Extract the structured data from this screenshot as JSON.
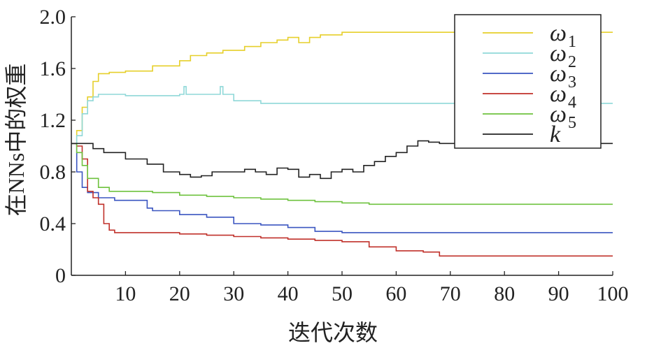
{
  "chart_data": {
    "type": "line",
    "title": "",
    "xlabel": "迭代次数",
    "ylabel": "在NNs中的权重",
    "xlim": [
      0,
      100
    ],
    "ylim": [
      0,
      2.0
    ],
    "xticks": [
      10,
      20,
      30,
      40,
      50,
      60,
      70,
      80,
      90,
      100
    ],
    "yticks": [
      0,
      0.4,
      0.8,
      1.2,
      1.6,
      2.0
    ],
    "ytick_labels": [
      "0",
      "0.4",
      "0.8",
      "1.2",
      "1.6",
      "2.0"
    ],
    "grid": false,
    "legend_position": "top-right",
    "series": [
      {
        "name": "ω",
        "subscript": "1",
        "color": "#e6cf2a",
        "points": [
          [
            0,
            1.02
          ],
          [
            1,
            1.12
          ],
          [
            2,
            1.3
          ],
          [
            3,
            1.38
          ],
          [
            4,
            1.5
          ],
          [
            5,
            1.56
          ],
          [
            7,
            1.57
          ],
          [
            10,
            1.58
          ],
          [
            15,
            1.62
          ],
          [
            20,
            1.66
          ],
          [
            22,
            1.7
          ],
          [
            25,
            1.72
          ],
          [
            28,
            1.74
          ],
          [
            32,
            1.77
          ],
          [
            35,
            1.8
          ],
          [
            38,
            1.82
          ],
          [
            40,
            1.84
          ],
          [
            42,
            1.8
          ],
          [
            44,
            1.84
          ],
          [
            46,
            1.86
          ],
          [
            50,
            1.88
          ],
          [
            55,
            1.88
          ],
          [
            60,
            1.88
          ],
          [
            70,
            1.88
          ],
          [
            80,
            1.88
          ],
          [
            90,
            1.88
          ],
          [
            100,
            1.88
          ]
        ]
      },
      {
        "name": "ω",
        "subscript": "2",
        "color": "#8fd8d8",
        "points": [
          [
            0,
            1.02
          ],
          [
            1,
            1.08
          ],
          [
            2,
            1.25
          ],
          [
            3,
            1.35
          ],
          [
            4,
            1.38
          ],
          [
            5,
            1.4
          ],
          [
            10,
            1.39
          ],
          [
            15,
            1.39
          ],
          [
            20,
            1.4
          ],
          [
            20.8,
            1.46
          ],
          [
            21.2,
            1.4
          ],
          [
            25,
            1.4
          ],
          [
            27.5,
            1.46
          ],
          [
            28,
            1.4
          ],
          [
            30,
            1.35
          ],
          [
            35,
            1.33
          ],
          [
            40,
            1.33
          ],
          [
            50,
            1.33
          ],
          [
            60,
            1.33
          ],
          [
            70,
            1.33
          ],
          [
            80,
            1.33
          ],
          [
            90,
            1.33
          ],
          [
            100,
            1.33
          ]
        ]
      },
      {
        "name": "ω",
        "subscript": "3",
        "color": "#3a55c0",
        "points": [
          [
            0,
            1.02
          ],
          [
            1,
            0.8
          ],
          [
            2,
            0.68
          ],
          [
            3,
            0.64
          ],
          [
            5,
            0.6
          ],
          [
            8,
            0.58
          ],
          [
            10,
            0.58
          ],
          [
            13,
            0.58
          ],
          [
            14,
            0.52
          ],
          [
            15,
            0.5
          ],
          [
            20,
            0.47
          ],
          [
            25,
            0.45
          ],
          [
            30,
            0.4
          ],
          [
            35,
            0.39
          ],
          [
            40,
            0.37
          ],
          [
            45,
            0.34
          ],
          [
            50,
            0.33
          ],
          [
            60,
            0.33
          ],
          [
            70,
            0.33
          ],
          [
            80,
            0.33
          ],
          [
            90,
            0.33
          ],
          [
            100,
            0.33
          ]
        ]
      },
      {
        "name": "ω",
        "subscript": "4",
        "color": "#c0302a",
        "points": [
          [
            0,
            1.02
          ],
          [
            1,
            1.0
          ],
          [
            2,
            0.9
          ],
          [
            3,
            0.65
          ],
          [
            4,
            0.6
          ],
          [
            5,
            0.55
          ],
          [
            6,
            0.4
          ],
          [
            7,
            0.35
          ],
          [
            8,
            0.33
          ],
          [
            15,
            0.33
          ],
          [
            20,
            0.32
          ],
          [
            25,
            0.31
          ],
          [
            30,
            0.3
          ],
          [
            35,
            0.29
          ],
          [
            40,
            0.28
          ],
          [
            45,
            0.27
          ],
          [
            50,
            0.26
          ],
          [
            55,
            0.22
          ],
          [
            60,
            0.19
          ],
          [
            65,
            0.18
          ],
          [
            68,
            0.15
          ],
          [
            70,
            0.15
          ],
          [
            80,
            0.15
          ],
          [
            90,
            0.15
          ],
          [
            100,
            0.15
          ]
        ]
      },
      {
        "name": "ω",
        "subscript": "5",
        "color": "#6ec23e",
        "points": [
          [
            0,
            1.02
          ],
          [
            1,
            0.95
          ],
          [
            2,
            0.85
          ],
          [
            3,
            0.75
          ],
          [
            5,
            0.68
          ],
          [
            7,
            0.65
          ],
          [
            10,
            0.65
          ],
          [
            15,
            0.64
          ],
          [
            20,
            0.62
          ],
          [
            25,
            0.61
          ],
          [
            30,
            0.6
          ],
          [
            35,
            0.59
          ],
          [
            40,
            0.58
          ],
          [
            45,
            0.57
          ],
          [
            50,
            0.56
          ],
          [
            55,
            0.55
          ],
          [
            60,
            0.55
          ],
          [
            70,
            0.55
          ],
          [
            80,
            0.55
          ],
          [
            90,
            0.55
          ],
          [
            100,
            0.55
          ]
        ]
      },
      {
        "name": "k",
        "subscript": "",
        "color": "#222222",
        "points": [
          [
            0,
            1.02
          ],
          [
            2,
            1.02
          ],
          [
            4,
            0.98
          ],
          [
            6,
            0.95
          ],
          [
            10,
            0.9
          ],
          [
            14,
            0.86
          ],
          [
            17,
            0.8
          ],
          [
            20,
            0.78
          ],
          [
            22,
            0.76
          ],
          [
            24,
            0.77
          ],
          [
            26,
            0.8
          ],
          [
            28,
            0.8
          ],
          [
            30,
            0.8
          ],
          [
            32,
            0.82
          ],
          [
            34,
            0.8
          ],
          [
            36,
            0.78
          ],
          [
            38,
            0.83
          ],
          [
            40,
            0.82
          ],
          [
            42,
            0.76
          ],
          [
            44,
            0.78
          ],
          [
            46,
            0.75
          ],
          [
            48,
            0.8
          ],
          [
            50,
            0.82
          ],
          [
            52,
            0.8
          ],
          [
            54,
            0.85
          ],
          [
            56,
            0.88
          ],
          [
            58,
            0.92
          ],
          [
            60,
            0.95
          ],
          [
            62,
            1.0
          ],
          [
            64,
            1.04
          ],
          [
            66,
            1.03
          ],
          [
            68,
            1.02
          ],
          [
            70,
            1.02
          ],
          [
            80,
            1.02
          ],
          [
            90,
            1.02
          ],
          [
            100,
            1.02
          ]
        ]
      }
    ]
  }
}
